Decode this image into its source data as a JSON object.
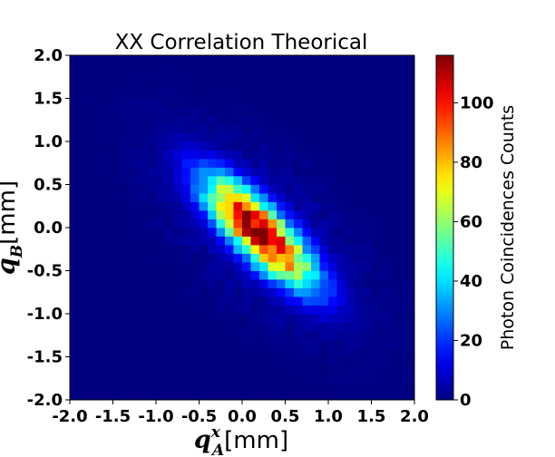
{
  "chart_data": {
    "type": "heatmap",
    "title": "XX Correlation Theorical",
    "xlabel": {
      "symbol": "q",
      "superscript": "x",
      "subscript": "A",
      "unit": "[mm]"
    },
    "ylabel": {
      "symbol": "q",
      "subscript": "B",
      "unit": "[mm]"
    },
    "xlim": [
      -2.0,
      2.0
    ],
    "ylim": [
      -2.0,
      2.0
    ],
    "x_ticks": [
      "-2.0",
      "-1.5",
      "-1.0",
      "-0.5",
      "0.0",
      "0.5",
      "1.0",
      "1.5",
      "2.0"
    ],
    "y_ticks": [
      "-2.0",
      "-1.5",
      "-1.0",
      "-0.5",
      "0.0",
      "0.5",
      "1.0",
      "1.5",
      "2.0"
    ],
    "bins": 40,
    "colormap": "jet",
    "colorbar": {
      "label": "Photon Coincidences Counts",
      "range": [
        0,
        116
      ],
      "ticks": [
        "0",
        "20",
        "40",
        "60",
        "80",
        "100"
      ]
    },
    "peak": {
      "x": 0.2,
      "y": -0.05,
      "value": 116
    },
    "distribution": "anti-correlated 2D Gaussian along q_B = -q_A, major sigma ~0.6 mm, minor sigma ~0.2 mm, with sparse low-count background"
  }
}
